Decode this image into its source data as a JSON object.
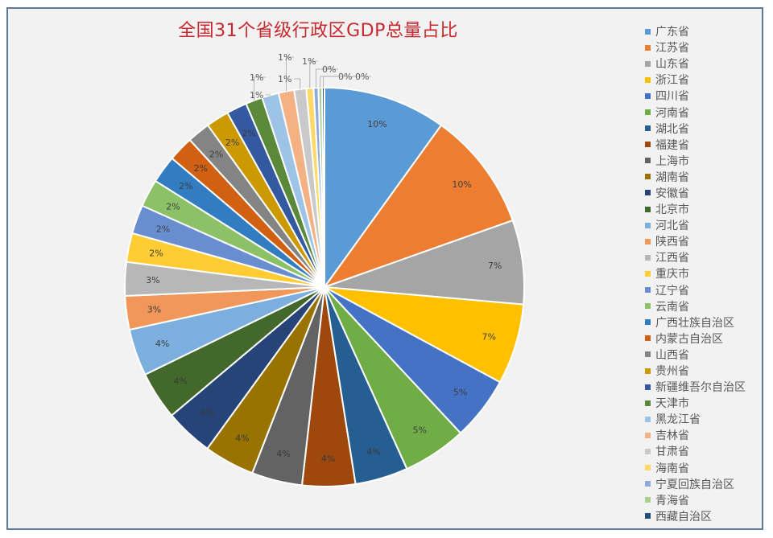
{
  "chart_data": {
    "type": "pie",
    "title": "全国31个省级行政区GDP总量占比",
    "legend_position": "right",
    "categories": [
      "广东省",
      "江苏省",
      "山东省",
      "浙江省",
      "四川省",
      "河南省",
      "湖北省",
      "福建省",
      "上海市",
      "湖南省",
      "安徽省",
      "北京市",
      "河北省",
      "陕西省",
      "江西省",
      "重庆市",
      "辽宁省",
      "云南省",
      "广西壮族自治区",
      "内蒙古自治区",
      "山西省",
      "贵州省",
      "新疆维吾尔自治区",
      "天津市",
      "黑龙江省",
      "吉林省",
      "甘肃省",
      "海南省",
      "宁夏回族自治区",
      "青海省",
      "西藏自治区"
    ],
    "values": [
      10.2,
      9.9,
      7.0,
      6.7,
      5.3,
      5.3,
      4.4,
      4.4,
      4.2,
      4.2,
      4.0,
      4.0,
      3.9,
      2.8,
      2.8,
      2.4,
      2.4,
      2.3,
      2.3,
      2.1,
      1.9,
      1.9,
      1.7,
      1.4,
      1.4,
      1.3,
      1.0,
      0.6,
      0.4,
      0.3,
      0.2
    ],
    "labels": [
      "10%",
      "10%",
      "7%",
      "7%",
      "5%",
      "5%",
      "4%",
      "4%",
      "4%",
      "4%",
      "4%",
      "4%",
      "4%",
      "3%",
      "3%",
      "2%",
      "2%",
      "2%",
      "2%",
      "2%",
      "2%",
      "2%",
      "2%",
      "1%",
      "1%",
      "1%",
      "1%",
      "1%",
      "0%",
      "0%",
      "0%"
    ],
    "colors": [
      "#5b9bd5",
      "#ed7d31",
      "#a5a5a5",
      "#ffc000",
      "#4472c4",
      "#70ad47",
      "#255e91",
      "#9e480e",
      "#636363",
      "#997300",
      "#264478",
      "#43682b",
      "#7cafdd",
      "#f1975a",
      "#b7b7b7",
      "#ffcd33",
      "#698ed0",
      "#8cc168",
      "#327dc2",
      "#d26012",
      "#848484",
      "#cc9a00",
      "#335aa1",
      "#5a8a39",
      "#9dc3e6",
      "#f4b183",
      "#c9c9c9",
      "#ffd966",
      "#8faadc",
      "#a9d18e",
      "#1f4e79"
    ],
    "label_leader_lines": true,
    "start_angle_deg": 0,
    "direction": "clockwise"
  }
}
